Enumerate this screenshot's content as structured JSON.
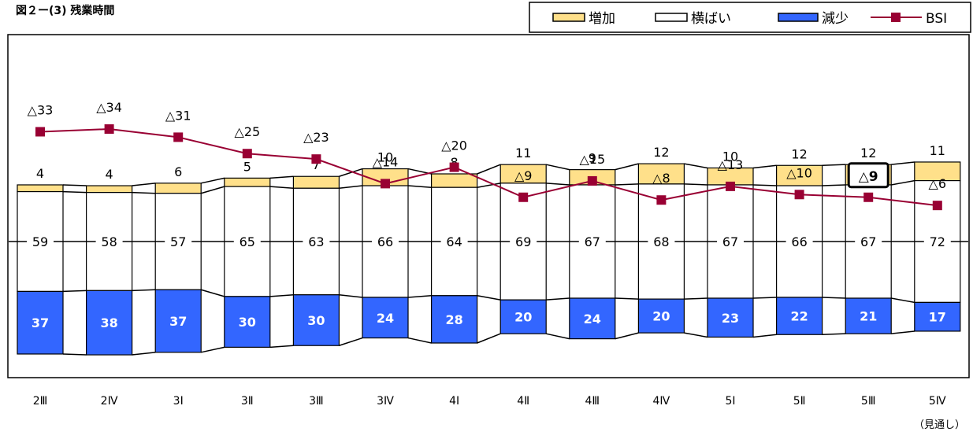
{
  "title": "図２ー(3) 残業時間",
  "legend": {
    "items": [
      {
        "label": "増加",
        "color": "#FFE08A"
      },
      {
        "label": "横ばい",
        "color": "#FFFFFF"
      },
      {
        "label": "減少",
        "color": "#3366FF"
      },
      {
        "label": "BSI",
        "color": "#990033"
      }
    ]
  },
  "note": "（見通し）",
  "chart_data": {
    "type": "bar",
    "stacking": "percent-stacked-with-line",
    "categories": [
      "2Ⅲ",
      "2Ⅳ",
      "3Ⅰ",
      "3Ⅱ",
      "3Ⅲ",
      "3Ⅳ",
      "4Ⅰ",
      "4Ⅱ",
      "4Ⅲ",
      "4Ⅳ",
      "5Ⅰ",
      "5Ⅱ",
      "5Ⅲ",
      "5Ⅳ"
    ],
    "series": [
      {
        "name": "増加",
        "values": [
          4,
          4,
          6,
          5,
          7,
          10,
          8,
          11,
          9,
          12,
          10,
          12,
          12,
          11
        ],
        "color": "#FFE08A"
      },
      {
        "name": "横ばい",
        "values": [
          59,
          58,
          57,
          65,
          63,
          66,
          64,
          69,
          67,
          68,
          67,
          66,
          67,
          72
        ],
        "color": "#FFFFFF"
      },
      {
        "name": "減少",
        "values": [
          37,
          38,
          37,
          30,
          30,
          24,
          28,
          20,
          24,
          20,
          23,
          22,
          21,
          17
        ],
        "color": "#3366FF"
      }
    ],
    "bsi": {
      "name": "BSI",
      "values": [
        -33,
        -34,
        -31,
        -25,
        -23,
        -14,
        -20,
        -9,
        -15,
        -8,
        -13,
        -10,
        -9,
        -6
      ],
      "labels": [
        "△33",
        "△34",
        "△31",
        "△25",
        "△23",
        "△14",
        "△20",
        "△9",
        "△15",
        "△8",
        "△13",
        "△10",
        "△9",
        "△6"
      ],
      "highlight_index": 12,
      "color": "#990033"
    },
    "grid": false,
    "legend_position": "top-right"
  }
}
